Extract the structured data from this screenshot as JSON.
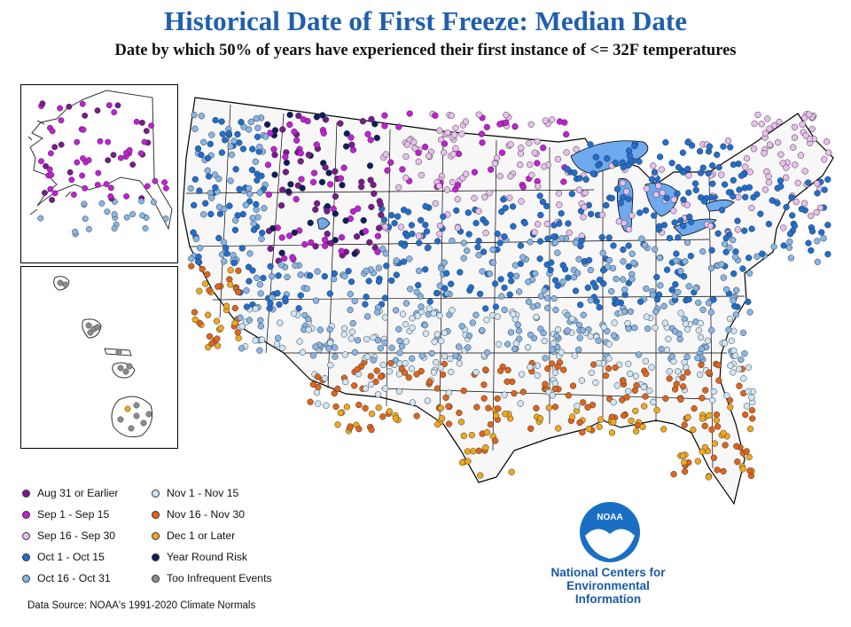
{
  "title": "Historical Date of First Freeze: Median Date",
  "subtitle": "Date by which 50% of years have experienced their first instance of <= 32F temperatures",
  "legend": {
    "items": [
      {
        "label": "Aug 31 or Earlier",
        "color": "#7a1a8c"
      },
      {
        "label": "Sep 1 - Sep 15",
        "color": "#c21fd6"
      },
      {
        "label": "Sep 16 - Sep 30",
        "color": "#e8bfee"
      },
      {
        "label": "Oct 1 - Oct 15",
        "color": "#1f6fd0"
      },
      {
        "label": "Oct 16 - Oct 31",
        "color": "#86b6e8"
      },
      {
        "label": "Nov 1 - Nov 15",
        "color": "#cfe6f6"
      },
      {
        "label": "Nov 16 - Nov 30",
        "color": "#e0641a"
      },
      {
        "label": "Dec 1 or Later",
        "color": "#f0a81c"
      },
      {
        "label": "Year Round Risk",
        "color": "#0f1d5c"
      },
      {
        "label": "Too Infrequent Events",
        "color": "#8c8c8c"
      }
    ]
  },
  "source": "Data Source: NOAA's 1991-2020 Climate Normals",
  "logo": {
    "badge_text": "NOAA",
    "org_lines": [
      "National Centers for",
      "Environmental",
      "Information"
    ],
    "icon": "noaa-seagull-icon"
  },
  "map": {
    "lake_color": "#6fa9ee",
    "boundary_color": "#000000",
    "marker_edge_color": "#333333"
  }
}
